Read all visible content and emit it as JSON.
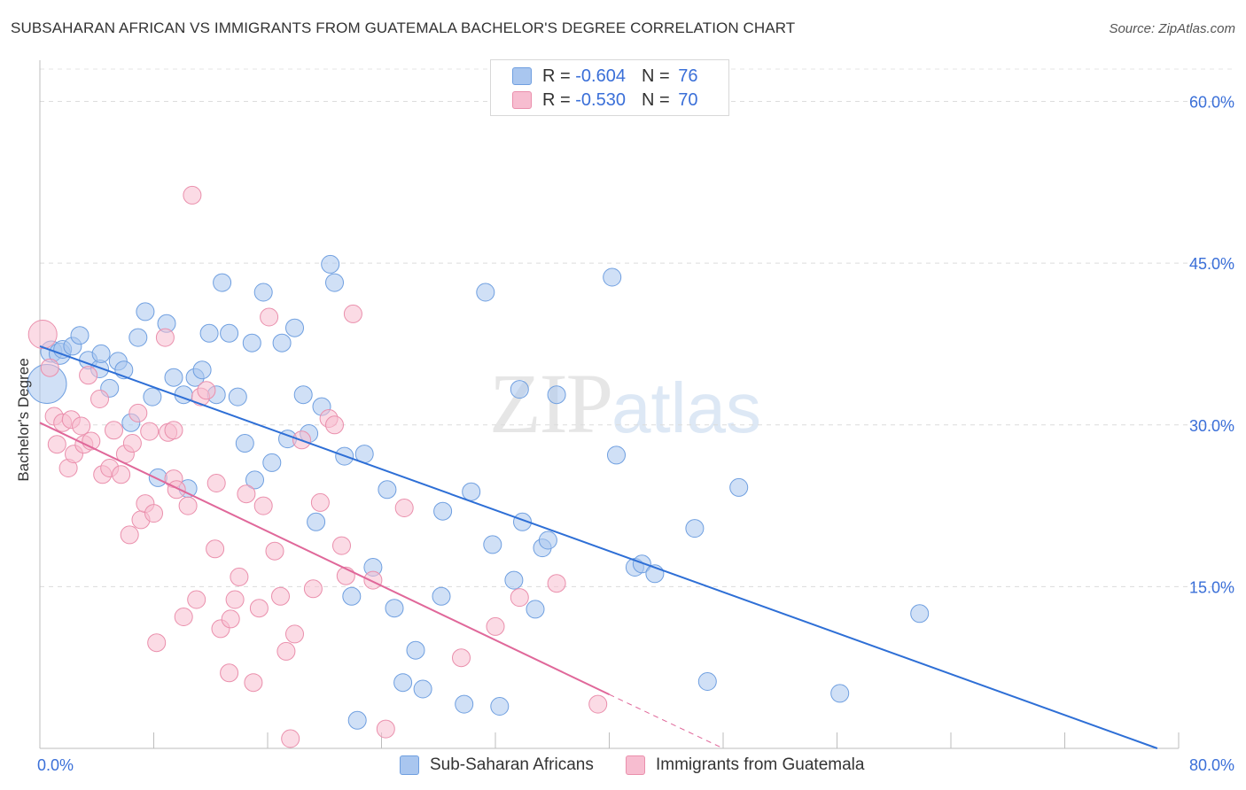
{
  "header": {
    "title": "SUBSAHARAN AFRICAN VS IMMIGRANTS FROM GUATEMALA BACHELOR'S DEGREE CORRELATION CHART",
    "source": "Source: ZipAtlas.com"
  },
  "watermark": {
    "zip": "ZIP",
    "atlas": "atlas"
  },
  "legend": {
    "rows": [
      {
        "r_label": "R = ",
        "r_value": "-0.604",
        "n_label": "N = ",
        "n_value": "76",
        "color": "#a9c6ef",
        "border": "#6f9fe0"
      },
      {
        "r_label": "R = ",
        "r_value": "-0.530",
        "n_label": "N = ",
        "n_value": "70",
        "color": "#f7bdd0",
        "border": "#ea8fac"
      }
    ]
  },
  "bottom_legend": [
    {
      "label": "Sub-Saharan Africans",
      "color": "#a9c6ef",
      "border": "#6f9fe0"
    },
    {
      "label": "Immigrants from Guatemala",
      "color": "#f7bdd0",
      "border": "#ea8fac"
    }
  ],
  "chart_data": {
    "type": "scatter",
    "title": "SUBSAHARAN AFRICAN VS IMMIGRANTS FROM GUATEMALA BACHELOR'S DEGREE CORRELATION CHART",
    "xlabel": "",
    "ylabel": "Bachelor's Degree",
    "xlim": [
      0,
      80
    ],
    "ylim": [
      0,
      63
    ],
    "x_tick_labels": {
      "left": "0.0%",
      "right": "80.0%"
    },
    "y_ticks": [
      {
        "value": 15,
        "label": "15.0%"
      },
      {
        "value": 30,
        "label": "30.0%"
      },
      {
        "value": 45,
        "label": "45.0%"
      },
      {
        "value": 60,
        "label": "60.0%"
      }
    ],
    "grid": true,
    "legend_position": "top-center",
    "series": [
      {
        "name": "Sub-Saharan Africans",
        "color": "#a9c6ef",
        "stroke": "#6f9fe0",
        "trend": {
          "x1": 0,
          "y1": 37.3,
          "x2": 78.5,
          "y2": 0,
          "color": "#2e6fd6"
        },
        "points": [
          [
            0.5,
            33.8,
            22
          ],
          [
            0.8,
            36.8,
            12
          ],
          [
            1.4,
            36.6,
            12
          ],
          [
            1.6,
            37.0,
            10
          ],
          [
            2.3,
            37.3,
            10
          ],
          [
            2.8,
            38.3,
            10
          ],
          [
            3.4,
            36.0,
            10
          ],
          [
            4.2,
            35.2,
            10
          ],
          [
            4.3,
            36.6,
            10
          ],
          [
            4.9,
            33.4,
            10
          ],
          [
            5.5,
            35.9,
            10
          ],
          [
            5.9,
            35.1,
            10
          ],
          [
            6.4,
            30.2,
            10
          ],
          [
            6.9,
            38.1,
            10
          ],
          [
            7.4,
            40.5,
            10
          ],
          [
            7.9,
            32.6,
            10
          ],
          [
            8.3,
            25.1,
            10
          ],
          [
            8.9,
            39.4,
            10
          ],
          [
            9.4,
            34.4,
            10
          ],
          [
            10.1,
            32.8,
            10
          ],
          [
            10.4,
            24.1,
            10
          ],
          [
            10.9,
            34.4,
            10
          ],
          [
            11.4,
            35.1,
            10
          ],
          [
            11.9,
            38.5,
            10
          ],
          [
            12.4,
            32.8,
            10
          ],
          [
            12.8,
            43.2,
            10
          ],
          [
            13.3,
            38.5,
            10
          ],
          [
            13.9,
            32.6,
            10
          ],
          [
            14.4,
            28.3,
            10
          ],
          [
            14.9,
            37.6,
            10
          ],
          [
            15.1,
            24.9,
            10
          ],
          [
            15.7,
            42.3,
            10
          ],
          [
            16.3,
            26.5,
            10
          ],
          [
            17.0,
            37.6,
            10
          ],
          [
            17.4,
            28.7,
            10
          ],
          [
            17.9,
            39.0,
            10
          ],
          [
            18.5,
            32.8,
            10
          ],
          [
            18.9,
            29.2,
            10
          ],
          [
            19.4,
            21.0,
            10
          ],
          [
            19.8,
            31.7,
            10
          ],
          [
            20.4,
            44.9,
            10
          ],
          [
            20.7,
            43.2,
            10
          ],
          [
            21.4,
            27.1,
            10
          ],
          [
            21.9,
            14.1,
            10
          ],
          [
            22.3,
            2.6,
            10
          ],
          [
            22.8,
            27.3,
            10
          ],
          [
            23.4,
            16.8,
            10
          ],
          [
            24.4,
            24.0,
            10
          ],
          [
            24.9,
            13.0,
            10
          ],
          [
            25.5,
            6.1,
            10
          ],
          [
            26.4,
            9.1,
            10
          ],
          [
            26.9,
            5.5,
            10
          ],
          [
            28.3,
            22.0,
            10
          ],
          [
            28.2,
            14.1,
            10
          ],
          [
            29.8,
            4.1,
            10
          ],
          [
            30.3,
            23.8,
            10
          ],
          [
            31.3,
            42.3,
            10
          ],
          [
            31.8,
            18.9,
            10
          ],
          [
            32.3,
            3.9,
            10
          ],
          [
            33.3,
            15.6,
            10
          ],
          [
            33.7,
            33.3,
            10
          ],
          [
            33.9,
            21.0,
            10
          ],
          [
            34.8,
            12.9,
            10
          ],
          [
            35.3,
            18.6,
            10
          ],
          [
            35.7,
            19.3,
            10
          ],
          [
            36.3,
            32.8,
            10
          ],
          [
            40.2,
            43.7,
            10
          ],
          [
            40.5,
            27.2,
            10
          ],
          [
            41.8,
            16.8,
            10
          ],
          [
            42.3,
            17.1,
            10
          ],
          [
            43.2,
            16.2,
            10
          ],
          [
            46.0,
            20.4,
            10
          ],
          [
            46.9,
            6.2,
            10
          ],
          [
            49.1,
            24.2,
            10
          ],
          [
            56.2,
            5.1,
            10
          ],
          [
            61.8,
            12.5,
            10
          ]
        ]
      },
      {
        "name": "Immigrants from Guatemala",
        "color": "#f7bdd0",
        "stroke": "#ea8fac",
        "trend": {
          "x1": 0,
          "y1": 30.2,
          "x2": 40.0,
          "y2": 5.0,
          "dash_x2": 48.0,
          "dash_y2": 0,
          "color": "#e0689a"
        },
        "points": [
          [
            0.2,
            38.4,
            16
          ],
          [
            0.7,
            35.3,
            10
          ],
          [
            1.0,
            30.8,
            10
          ],
          [
            1.2,
            28.2,
            10
          ],
          [
            1.6,
            30.2,
            10
          ],
          [
            2.0,
            26.0,
            10
          ],
          [
            2.2,
            30.5,
            10
          ],
          [
            2.4,
            27.3,
            10
          ],
          [
            2.9,
            29.9,
            10
          ],
          [
            3.1,
            28.2,
            10
          ],
          [
            3.4,
            34.6,
            10
          ],
          [
            3.6,
            28.5,
            10
          ],
          [
            4.2,
            32.4,
            10
          ],
          [
            4.4,
            25.4,
            10
          ],
          [
            4.9,
            26.0,
            10
          ],
          [
            5.2,
            29.5,
            10
          ],
          [
            5.7,
            25.4,
            10
          ],
          [
            6.0,
            27.3,
            10
          ],
          [
            6.3,
            19.8,
            10
          ],
          [
            6.5,
            28.3,
            10
          ],
          [
            6.9,
            31.1,
            10
          ],
          [
            7.1,
            21.2,
            10
          ],
          [
            7.4,
            22.7,
            10
          ],
          [
            7.7,
            29.4,
            10
          ],
          [
            8.0,
            21.8,
            10
          ],
          [
            8.2,
            9.8,
            10
          ],
          [
            8.8,
            38.1,
            10
          ],
          [
            9.0,
            29.3,
            10
          ],
          [
            9.4,
            25.0,
            10
          ],
          [
            9.6,
            24.0,
            10
          ],
          [
            10.1,
            12.2,
            10
          ],
          [
            10.4,
            22.5,
            10
          ],
          [
            10.7,
            51.3,
            10
          ],
          [
            11.0,
            13.8,
            10
          ],
          [
            11.3,
            32.6,
            10
          ],
          [
            11.7,
            33.2,
            10
          ],
          [
            12.3,
            18.5,
            10
          ],
          [
            12.7,
            11.1,
            10
          ],
          [
            13.3,
            7.0,
            10
          ],
          [
            13.4,
            12.0,
            10
          ],
          [
            13.7,
            13.8,
            10
          ],
          [
            14.0,
            15.9,
            10
          ],
          [
            14.5,
            23.6,
            10
          ],
          [
            15.0,
            6.1,
            10
          ],
          [
            15.4,
            13.0,
            10
          ],
          [
            15.7,
            22.5,
            10
          ],
          [
            16.1,
            40.0,
            10
          ],
          [
            16.5,
            18.3,
            10
          ],
          [
            16.9,
            14.1,
            10
          ],
          [
            17.3,
            9.0,
            10
          ],
          [
            17.6,
            0.9,
            10
          ],
          [
            17.9,
            10.6,
            10
          ],
          [
            18.4,
            28.6,
            10
          ],
          [
            19.2,
            14.8,
            10
          ],
          [
            19.7,
            22.8,
            10
          ],
          [
            20.3,
            30.6,
            10
          ],
          [
            20.7,
            30.0,
            10
          ],
          [
            21.2,
            18.8,
            10
          ],
          [
            21.5,
            16.0,
            10
          ],
          [
            22.0,
            40.3,
            10
          ],
          [
            23.4,
            15.6,
            10
          ],
          [
            24.3,
            1.8,
            10
          ],
          [
            25.6,
            22.3,
            10
          ],
          [
            29.6,
            8.4,
            10
          ],
          [
            32.0,
            11.3,
            10
          ],
          [
            33.7,
            14.0,
            10
          ],
          [
            36.3,
            15.3,
            10
          ],
          [
            39.2,
            4.1,
            10
          ],
          [
            12.4,
            24.6,
            10
          ],
          [
            9.4,
            29.5,
            10
          ]
        ]
      }
    ]
  }
}
